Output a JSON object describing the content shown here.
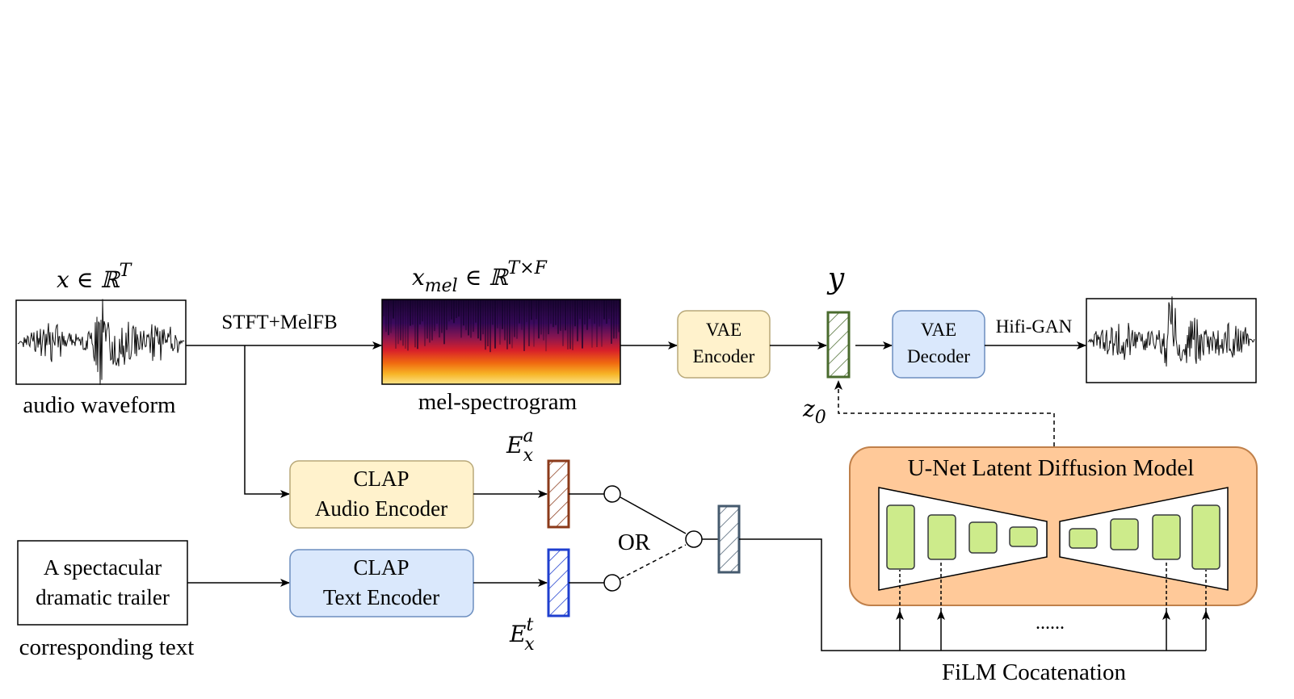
{
  "colors": {
    "yellow_fill": "#fff2cc",
    "yellow_stroke": "#b8a878",
    "blue_fill": "#dae8fc",
    "blue_stroke": "#6c8ebf",
    "orange_fill": "#ffc999",
    "orange_stroke": "#c0804a",
    "green_fill": "#cdeb8b",
    "green_stroke": "#36393d",
    "latent_green": "#4a6b2e",
    "audio_brown": "#8b3a1a",
    "text_blue": "#1f3fcf",
    "cond_slate": "#455a6e"
  },
  "labels": {
    "x_sym": "x ∈ ℝ",
    "x_sup": "T",
    "xmel_sym": "x",
    "xmel_sub": "mel",
    "xmel_in": " ∈ ℝ",
    "xmel_sup": "T×F",
    "y_sym": "y",
    "z_sym": "z",
    "z_sub": "0",
    "ea_sym": "E",
    "ea_sup": "a",
    "ea_sub": "x",
    "et_sym": "E",
    "et_sup": "t",
    "et_sub": "x",
    "audio_waveform": "audio waveform",
    "stft": "STFT+MelFB",
    "mel_spectrogram": "mel-spectrogram",
    "hifigan": "Hifi-GAN",
    "or": "OR",
    "corresponding_text": "corresponding text",
    "film": "FiLM Cocatenation",
    "ellipsis": "......"
  },
  "boxes": {
    "vae_encoder": [
      "VAE",
      "Encoder"
    ],
    "vae_decoder": [
      "VAE",
      "Decoder"
    ],
    "clap_audio": [
      "CLAP",
      "Audio Encoder"
    ],
    "clap_text": [
      "CLAP",
      "Text Encoder"
    ],
    "text_prompt": [
      "A spectacular",
      "dramatic trailer"
    ],
    "unet_title": "U-Net Latent Diffusion Model"
  }
}
